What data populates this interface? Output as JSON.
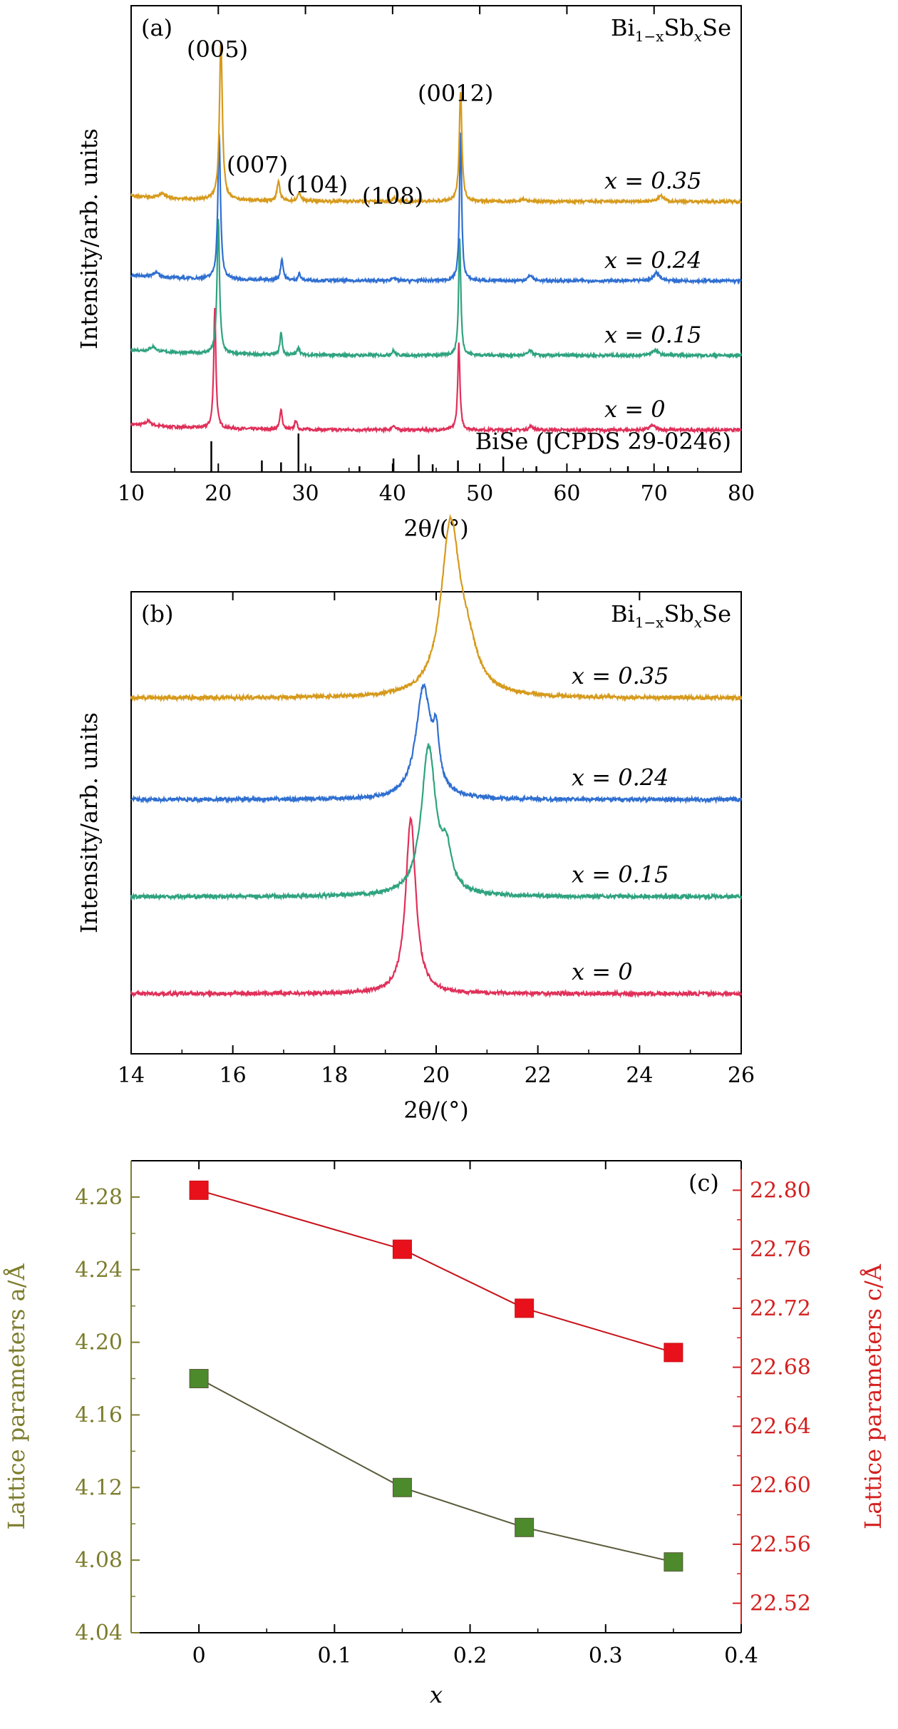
{
  "chart_data": [
    {
      "panel": "(a)",
      "type": "line",
      "title": "Bi1−xSbxSe",
      "title_parts": {
        "base": "Bi",
        "sub1": "1−x",
        "mid": "Sb",
        "sub2": "x",
        "end": "Se"
      },
      "xlabel": "2θ/(°)",
      "ylabel": "Intensity/arb. units",
      "xlim": [
        10,
        80
      ],
      "xticks": [
        10,
        20,
        30,
        40,
        50,
        60,
        70,
        80
      ],
      "y_ticks_shown": false,
      "reference_label": "BiSe (JCPDS 29-0246)",
      "reference_lines": [
        {
          "x": 19.2,
          "h": 0.8
        },
        {
          "x": 25.0,
          "h": 0.3
        },
        {
          "x": 27.2,
          "h": 0.25
        },
        {
          "x": 29.2,
          "h": 1.0
        },
        {
          "x": 30.6,
          "h": 0.15
        },
        {
          "x": 36.2,
          "h": 0.15
        },
        {
          "x": 40.1,
          "h": 0.35
        },
        {
          "x": 43.0,
          "h": 0.45
        },
        {
          "x": 44.6,
          "h": 0.2
        },
        {
          "x": 47.5,
          "h": 0.3
        },
        {
          "x": 52.7,
          "h": 0.4
        },
        {
          "x": 56.5,
          "h": 0.15
        },
        {
          "x": 61.5,
          "h": 0.1
        },
        {
          "x": 67.0,
          "h": 0.15
        },
        {
          "x": 71.6,
          "h": 0.15
        }
      ],
      "peak_labels": [
        {
          "text": "(005)",
          "x": 20.2
        },
        {
          "text": "(007)",
          "x": 27.0
        },
        {
          "text": "(104)",
          "x": 29.5
        },
        {
          "text": "(108)",
          "x": 40.0
        },
        {
          "text": "(0012)",
          "x": 47.8
        }
      ],
      "series": [
        {
          "name": "x = 0",
          "color": "#e0305a",
          "baseline": 0.09,
          "peaks": [
            [
              12.0,
              0.01,
              0.4
            ],
            [
              19.6,
              0.26,
              0.15
            ],
            [
              27.2,
              0.045,
              0.15
            ],
            [
              28.9,
              0.02,
              0.15
            ],
            [
              40.1,
              0.01,
              0.2
            ],
            [
              47.6,
              0.185,
              0.15
            ],
            [
              55.9,
              0.008,
              0.3
            ],
            [
              69.8,
              0.01,
              0.4
            ]
          ]
        },
        {
          "name": "x = 0.15",
          "color": "#2fa37f",
          "baseline": 0.25,
          "peaks": [
            [
              12.5,
              0.01,
              0.4
            ],
            [
              20.0,
              0.29,
              0.17
            ],
            [
              27.2,
              0.048,
              0.15
            ],
            [
              29.2,
              0.018,
              0.15
            ],
            [
              40.1,
              0.01,
              0.2
            ],
            [
              47.7,
              0.25,
              0.15
            ],
            [
              55.8,
              0.01,
              0.3
            ],
            [
              70.1,
              0.012,
              0.4
            ]
          ]
        },
        {
          "name": "x = 0.24",
          "color": "#2f6fd1",
          "baseline": 0.41,
          "peaks": [
            [
              12.8,
              0.01,
              0.4
            ],
            [
              20.1,
              0.31,
              0.18
            ],
            [
              27.3,
              0.045,
              0.18
            ],
            [
              29.3,
              0.015,
              0.15
            ],
            [
              40.1,
              0.008,
              0.2
            ],
            [
              47.8,
              0.315,
              0.15
            ],
            [
              55.8,
              0.012,
              0.3
            ],
            [
              70.3,
              0.018,
              0.4
            ]
          ]
        },
        {
          "name": "x = 0.35",
          "color": "#d69a1c",
          "baseline": 0.58,
          "peaks": [
            [
              13.5,
              0.01,
              0.4
            ],
            [
              20.3,
              0.34,
              0.2
            ],
            [
              26.9,
              0.04,
              0.2
            ],
            [
              29.3,
              0.018,
              0.2
            ],
            [
              40.2,
              0.008,
              0.2
            ],
            [
              47.8,
              0.235,
              0.18
            ],
            [
              55.0,
              0.006,
              0.3
            ],
            [
              70.8,
              0.012,
              0.4
            ]
          ]
        }
      ],
      "series_labels": [
        "x = 0",
        "x = 0.15",
        "x = 0.24",
        "x = 0.35"
      ]
    },
    {
      "panel": "(b)",
      "type": "line",
      "title": "Bi1−xSbxSe",
      "title_parts": {
        "base": "Bi",
        "sub1": "1−x",
        "mid": "Sb",
        "sub2": "x",
        "end": "Se"
      },
      "xlabel": "2θ/(°)",
      "ylabel": "Intensity/arb. units",
      "xlim": [
        14,
        26
      ],
      "xticks": [
        14,
        16,
        18,
        20,
        22,
        24,
        26
      ],
      "y_ticks_shown": false,
      "series": [
        {
          "name": "x = 0",
          "color": "#e0305a",
          "baseline": 0.13,
          "peaks": [
            [
              19.5,
              0.38,
              0.12
            ]
          ]
        },
        {
          "name": "x = 0.15",
          "color": "#2fa37f",
          "baseline": 0.34,
          "peaks": [
            [
              19.85,
              0.32,
              0.17
            ],
            [
              20.2,
              0.08,
              0.12
            ]
          ]
        },
        {
          "name": "x = 0.24",
          "color": "#2f6fd1",
          "baseline": 0.55,
          "peaks": [
            [
              19.75,
              0.24,
              0.18
            ],
            [
              20.0,
              0.1,
              0.07
            ]
          ]
        },
        {
          "name": "x = 0.35",
          "color": "#d69a1c",
          "baseline": 0.77,
          "peaks": [
            [
              20.28,
              0.36,
              0.22
            ],
            [
              20.6,
              0.08,
              0.25
            ]
          ]
        }
      ],
      "series_labels": [
        "x = 0",
        "x = 0.15",
        "x = 0.24",
        "x = 0.35"
      ]
    },
    {
      "panel": "(c)",
      "type": "line",
      "xlabel": "x",
      "ylabel_left": "Lattice parameters a/Å",
      "ylabel_right": "Lattice parameters c/Å",
      "xlim": [
        -0.05,
        0.4
      ],
      "xticks": [
        0,
        0.1,
        0.2,
        0.3,
        0.4
      ],
      "ylim_left": [
        4.04,
        4.3
      ],
      "yticks_left": [
        "4.04",
        "4.08",
        "4.12",
        "4.16",
        "4.20",
        "4.24",
        "4.28"
      ],
      "ylim_right": [
        22.5,
        22.82
      ],
      "yticks_right": [
        "22.52",
        "22.56",
        "22.60",
        "22.64",
        "22.68",
        "22.72",
        "22.76",
        "22.80"
      ],
      "left_axis_color": "#7d7d2e",
      "right_axis_color": "#d42020",
      "series": [
        {
          "name": "a",
          "axis": "left",
          "marker_color": "#4c8a2c",
          "line_color": "#5a5a3a",
          "x": [
            0,
            0.15,
            0.24,
            0.35
          ],
          "y": [
            4.18,
            4.12,
            4.098,
            4.079
          ]
        },
        {
          "name": "c",
          "axis": "right",
          "marker_color": "#e8101a",
          "line_color": "#c81018",
          "x": [
            0,
            0.15,
            0.24,
            0.35
          ],
          "y": [
            22.8,
            22.76,
            22.72,
            22.69
          ]
        }
      ]
    }
  ]
}
